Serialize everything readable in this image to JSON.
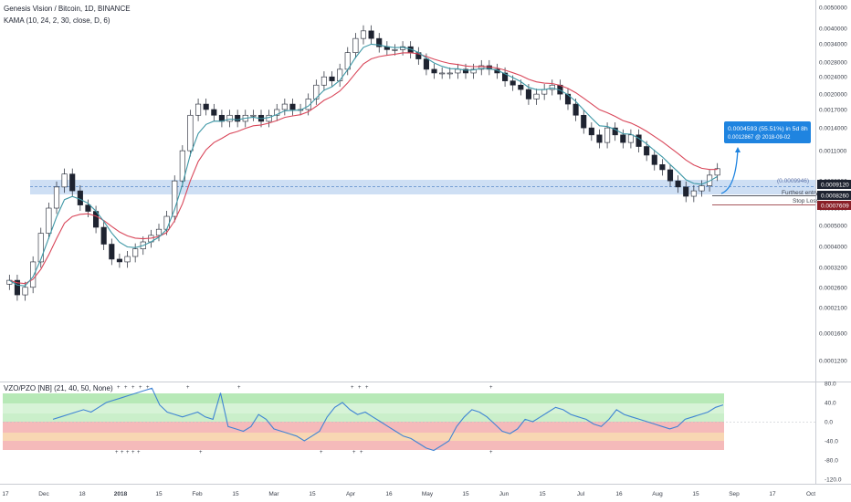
{
  "header": {
    "symbol_title": "Genesis Vision / Bitcoin, 1D, BINANCE",
    "indicator_main": "KAMA (10, 24, 2, 30, close, D, 6)",
    "indicator_sub": "VZO/PZO [NB] (21, 40, 50, None)"
  },
  "price_axis": {
    "ticks": [
      "0.0050000",
      "0.0040000",
      "0.0034000",
      "0.0028000",
      "0.0024000",
      "0.0020000",
      "0.0017000",
      "0.0014000",
      "0.0011000",
      "0.0008000",
      "0.0006000",
      "0.0005000",
      "0.0004000",
      "0.0003200",
      "0.0002600",
      "0.0002100",
      "0.0001600",
      "0.0001200"
    ],
    "tags": {
      "last_price": "0.0009120",
      "entry": "0.0008260",
      "stop": "0.0007609"
    },
    "tag_colors": {
      "last_price": "#1e2330",
      "entry": "#1e2330",
      "stop": "#8a1f27"
    }
  },
  "osc_axis": {
    "ticks": [
      "80.0",
      "40.0",
      "0.0",
      "-40.0",
      "-80.0",
      "-120.0"
    ]
  },
  "time_axis": {
    "labels": [
      "17",
      "Dec",
      "18",
      "2018",
      "15",
      "Feb",
      "15",
      "Mar",
      "15",
      "Apr",
      "16",
      "May",
      "15",
      "Jun",
      "15",
      "Jul",
      "16",
      "Aug",
      "15",
      "Sep",
      "17",
      "Oct"
    ]
  },
  "annotations": {
    "zone_value": "(0.0009946)",
    "furthest_entry": "Furthest entry",
    "stop_loss": "Stop Loss",
    "projection_line1": "0.0004593 (55.51%) in 5d 8h",
    "projection_line2": "0.0012867  @ 2018-09-02"
  },
  "chart_data": {
    "type": "candlestick",
    "price_scale": "log",
    "ylim": [
      0.00011,
      0.0052
    ],
    "close_approx": [
      0.00028,
      0.00024,
      0.00026,
      0.00034,
      0.00046,
      0.0006,
      0.00075,
      0.00086,
      0.00072,
      0.00062,
      0.00058,
      0.00049,
      0.00041,
      0.00035,
      0.00034,
      0.00036,
      0.00039,
      0.00042,
      0.00045,
      0.00048,
      0.00055,
      0.0008,
      0.0011,
      0.0016,
      0.0018,
      0.0017,
      0.0016,
      0.0015,
      0.0016,
      0.0015,
      0.0016,
      0.0016,
      0.0015,
      0.0016,
      0.0017,
      0.0018,
      0.0017,
      0.0017,
      0.0019,
      0.0022,
      0.0024,
      0.0023,
      0.0026,
      0.0031,
      0.0036,
      0.0039,
      0.0036,
      0.0033,
      0.0032,
      0.0032,
      0.0033,
      0.0031,
      0.0029,
      0.0026,
      0.0025,
      0.0025,
      0.0025,
      0.0026,
      0.0025,
      0.0026,
      0.0027,
      0.0026,
      0.0025,
      0.0023,
      0.0022,
      0.0021,
      0.0019,
      0.002,
      0.0021,
      0.0022,
      0.002,
      0.0018,
      0.0016,
      0.0014,
      0.0013,
      0.0012,
      0.0014,
      0.0013,
      0.0012,
      0.0013,
      0.00115,
      0.00105,
      0.00095,
      0.0009,
      0.0008,
      0.00075,
      0.00068,
      0.00072,
      0.00076,
      0.00085,
      0.00091
    ],
    "vzo_approx": [
      5,
      10,
      15,
      20,
      25,
      20,
      30,
      40,
      45,
      50,
      55,
      60,
      65,
      70,
      35,
      20,
      15,
      10,
      15,
      20,
      10,
      5,
      60,
      -10,
      -15,
      -20,
      -10,
      15,
      5,
      -15,
      -20,
      -25,
      -30,
      -40,
      -30,
      -20,
      10,
      30,
      40,
      25,
      15,
      20,
      10,
      0,
      -10,
      -20,
      -30,
      -35,
      -45,
      -55,
      -60,
      -50,
      -40,
      -10,
      10,
      25,
      20,
      10,
      -5,
      -20,
      -25,
      -15,
      5,
      0,
      10,
      20,
      30,
      25,
      15,
      10,
      5,
      -5,
      -10,
      5,
      25,
      15,
      10,
      5,
      0,
      -5,
      -10,
      -15,
      -10,
      5,
      10,
      15,
      20,
      30,
      35
    ],
    "series": [
      {
        "name": "KAMA fast",
        "color": "#3d97a6"
      },
      {
        "name": "KAMA slow",
        "color": "#d9475a"
      }
    ]
  },
  "colors": {
    "up": "#ffffff",
    "down": "#1e2330",
    "zone": "#9ec0ea",
    "projection": "#1f84e0",
    "osc_line": "#3f84d4",
    "band_green": "#9fe29f",
    "band_red": "#f2a3a3",
    "band_orange": "#f6c99a"
  }
}
